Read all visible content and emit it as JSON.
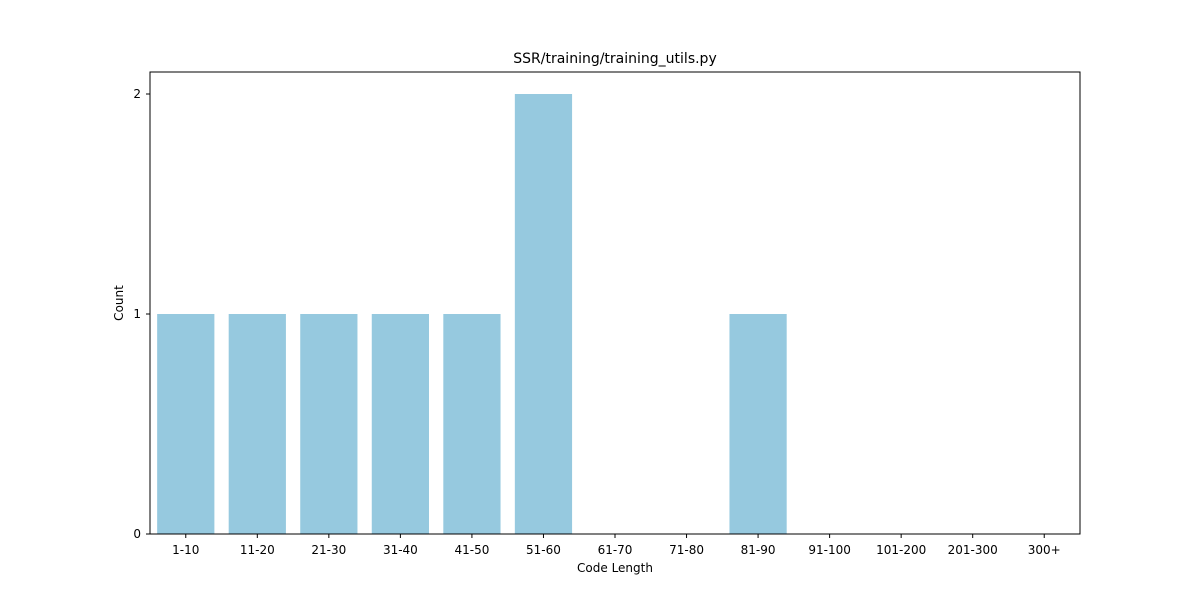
{
  "chart_data": {
    "type": "bar",
    "title": "SSR/training/training_utils.py",
    "xlabel": "Code Length",
    "ylabel": "Count",
    "categories": [
      "1-10",
      "11-20",
      "21-30",
      "31-40",
      "41-50",
      "51-60",
      "61-70",
      "71-80",
      "81-90",
      "91-100",
      "101-200",
      "201-300",
      "300+"
    ],
    "values": [
      1,
      1,
      1,
      1,
      1,
      2,
      0,
      0,
      1,
      0,
      0,
      0,
      0
    ],
    "ylim": [
      0,
      2.1
    ],
    "yticks": [
      0,
      1,
      2
    ],
    "grid": false,
    "bar_color": "#96c9df"
  }
}
